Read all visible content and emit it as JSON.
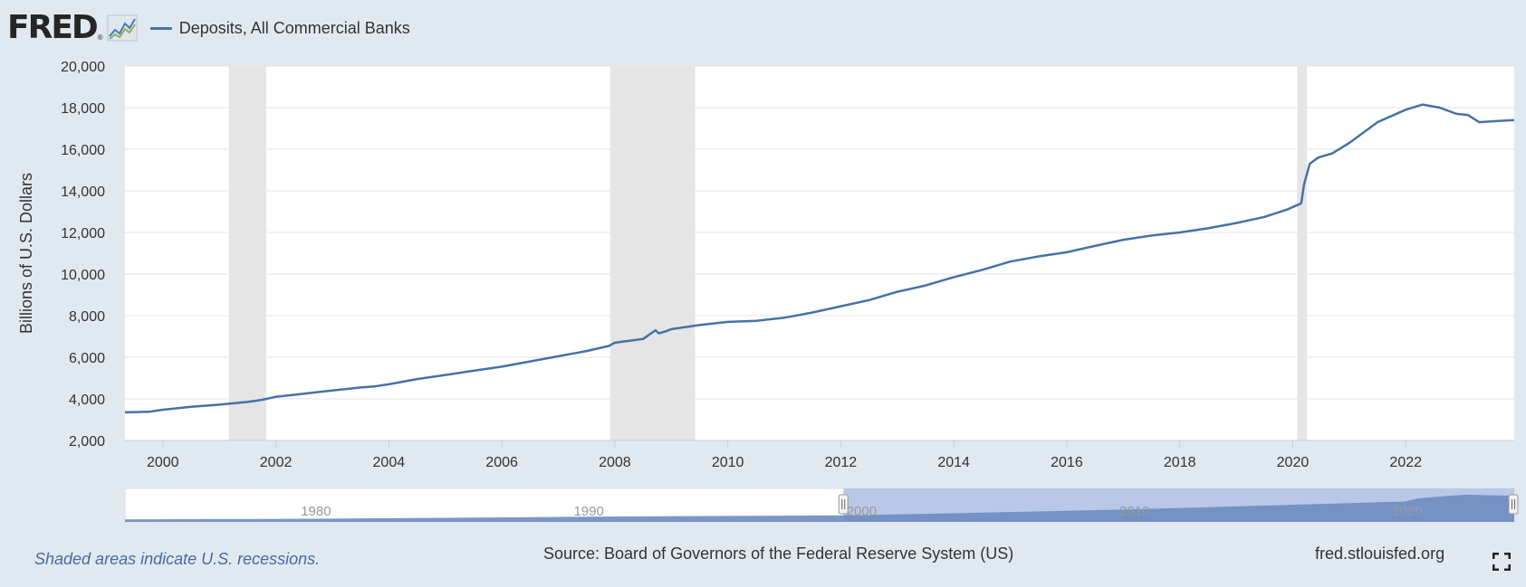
{
  "header": {
    "logo_text": "FRED",
    "logo_reg": "®",
    "legend_label": "Deposits, All Commercial Banks"
  },
  "footer": {
    "recession_note": "Shaded areas indicate U.S. recessions.",
    "source": "Source: Board of Governors of the Federal Reserve System (US)",
    "site": "fred.stlouisfed.org"
  },
  "colors": {
    "line": "#4572a7",
    "recession": "#e5e5e5",
    "navigator_fill": "#6d8cc0",
    "navigator_selected": "#b8c8e6"
  },
  "icons": [
    "fred-chart-icon",
    "fullscreen-icon",
    "navigator-handle-icon"
  ],
  "chart_data": {
    "type": "line",
    "title": "",
    "ylabel": "Billions of U.S. Dollars",
    "xlabel": "",
    "xlim": [
      1999.33,
      2023.92
    ],
    "ylim": [
      2000,
      20000
    ],
    "yticks": [
      {
        "value": 2000,
        "label": "2,000"
      },
      {
        "value": 4000,
        "label": "4,000"
      },
      {
        "value": 6000,
        "label": "6,000"
      },
      {
        "value": 8000,
        "label": "8,000"
      },
      {
        "value": 10000,
        "label": "10,000"
      },
      {
        "value": 12000,
        "label": "12,000"
      },
      {
        "value": 14000,
        "label": "14,000"
      },
      {
        "value": 16000,
        "label": "16,000"
      },
      {
        "value": 18000,
        "label": "18,000"
      },
      {
        "value": 20000,
        "label": "20,000"
      }
    ],
    "xticks": [
      {
        "value": 2000,
        "label": "2000"
      },
      {
        "value": 2002,
        "label": "2002"
      },
      {
        "value": 2004,
        "label": "2004"
      },
      {
        "value": 2006,
        "label": "2006"
      },
      {
        "value": 2008,
        "label": "2008"
      },
      {
        "value": 2010,
        "label": "2010"
      },
      {
        "value": 2012,
        "label": "2012"
      },
      {
        "value": 2014,
        "label": "2014"
      },
      {
        "value": 2016,
        "label": "2016"
      },
      {
        "value": 2018,
        "label": "2018"
      },
      {
        "value": 2020,
        "label": "2020"
      },
      {
        "value": 2022,
        "label": "2022"
      }
    ],
    "grid": true,
    "legend": "top-left",
    "recessions": [
      [
        2001.17,
        2001.83
      ],
      [
        2007.92,
        2009.42
      ],
      [
        2020.08,
        2020.25
      ]
    ],
    "series": [
      {
        "name": "Deposits, All Commercial Banks",
        "x": [
          1999.33,
          1999.75,
          2000.0,
          2000.5,
          2001.0,
          2001.5,
          2001.75,
          2002.0,
          2002.5,
          2003.0,
          2003.5,
          2003.75,
          2004.0,
          2004.5,
          2005.0,
          2005.5,
          2006.0,
          2006.5,
          2007.0,
          2007.5,
          2007.9,
          2008.0,
          2008.5,
          2008.72,
          2008.78,
          2008.9,
          2009.0,
          2009.5,
          2010.0,
          2010.5,
          2011.0,
          2011.5,
          2012.0,
          2012.5,
          2013.0,
          2013.5,
          2014.0,
          2014.5,
          2015.0,
          2015.5,
          2016.0,
          2016.5,
          2017.0,
          2017.5,
          2018.0,
          2018.5,
          2019.0,
          2019.5,
          2019.9,
          2020.15,
          2020.2,
          2020.3,
          2020.45,
          2020.7,
          2021.0,
          2021.5,
          2022.0,
          2022.3,
          2022.6,
          2022.9,
          2023.1,
          2023.3,
          2023.6,
          2023.92
        ],
        "values": [
          3350,
          3380,
          3480,
          3620,
          3720,
          3850,
          3950,
          4100,
          4250,
          4400,
          4550,
          4600,
          4700,
          4950,
          5150,
          5350,
          5550,
          5800,
          6050,
          6300,
          6550,
          6700,
          6880,
          7300,
          7150,
          7250,
          7350,
          7550,
          7700,
          7750,
          7900,
          8150,
          8450,
          8750,
          9150,
          9450,
          9850,
          10200,
          10600,
          10850,
          11050,
          11350,
          11650,
          11850,
          12000,
          12200,
          12450,
          12750,
          13100,
          13400,
          14300,
          15300,
          15600,
          15800,
          16300,
          17300,
          17900,
          18150,
          18000,
          17700,
          17650,
          17300,
          17350,
          17400
        ]
      }
    ],
    "navigator": {
      "xlim": [
        1973.0,
        2023.92
      ],
      "selected": [
        1999.33,
        2023.92
      ],
      "labels": [
        {
          "value": 1980,
          "label": "1980"
        },
        {
          "value": 1990,
          "label": "1990"
        },
        {
          "value": 2000,
          "label": "2000"
        },
        {
          "value": 2010,
          "label": "2010"
        },
        {
          "value": 2020,
          "label": "2020"
        }
      ],
      "x": [
        1973.0,
        1980.0,
        1990.0,
        2000.0,
        2010.0,
        2019.9,
        2020.4,
        2021.5,
        2022.2,
        2023.0,
        2023.92
      ],
      "values": [
        500,
        1000,
        2400,
        3500,
        7700,
        13200,
        15500,
        17200,
        18100,
        17700,
        17400
      ]
    }
  }
}
